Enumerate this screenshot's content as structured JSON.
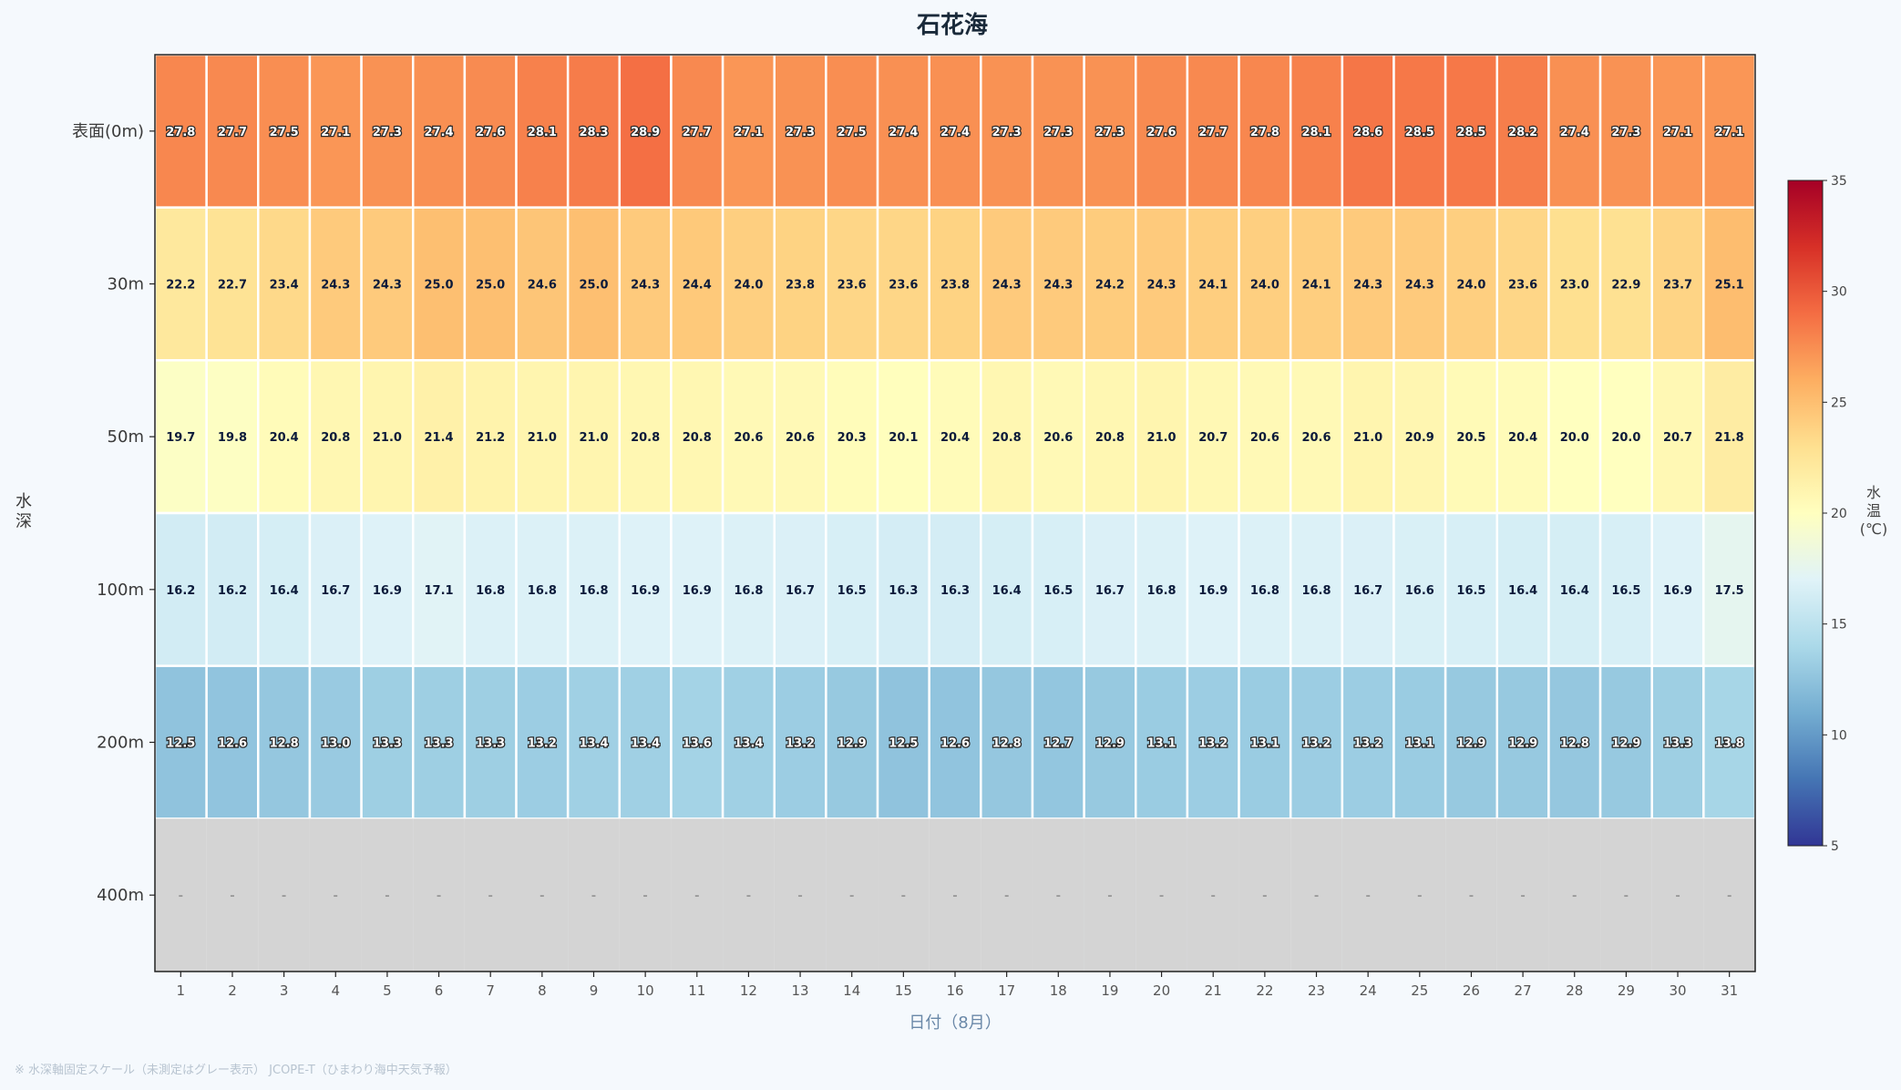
{
  "chart_data": {
    "type": "heatmap",
    "title": "石花海",
    "xlabel": "日付（8月）",
    "ylabel": "水深",
    "x": [
      1,
      2,
      3,
      4,
      5,
      6,
      7,
      8,
      9,
      10,
      11,
      12,
      13,
      14,
      15,
      16,
      17,
      18,
      19,
      20,
      21,
      22,
      23,
      24,
      25,
      26,
      27,
      28,
      29,
      30,
      31
    ],
    "y": [
      "表面(0m)",
      "30m",
      "50m",
      "100m",
      "200m",
      "400m"
    ],
    "values": [
      [
        27.8,
        27.7,
        27.5,
        27.1,
        27.3,
        27.4,
        27.6,
        28.1,
        28.3,
        28.9,
        27.7,
        27.1,
        27.3,
        27.5,
        27.4,
        27.4,
        27.3,
        27.3,
        27.3,
        27.6,
        27.7,
        27.8,
        28.1,
        28.6,
        28.5,
        28.5,
        28.2,
        27.4,
        27.3,
        27.1,
        27.1
      ],
      [
        22.2,
        22.7,
        23.4,
        24.3,
        24.3,
        25.0,
        25.0,
        24.6,
        25.0,
        24.3,
        24.4,
        24.0,
        23.8,
        23.6,
        23.6,
        23.8,
        24.3,
        24.3,
        24.2,
        24.3,
        24.1,
        24.0,
        24.1,
        24.3,
        24.3,
        24.0,
        23.6,
        23.0,
        22.9,
        23.7,
        25.1
      ],
      [
        19.7,
        19.8,
        20.4,
        20.8,
        21.0,
        21.4,
        21.2,
        21.0,
        21.0,
        20.8,
        20.8,
        20.6,
        20.6,
        20.3,
        20.1,
        20.4,
        20.8,
        20.6,
        20.8,
        21.0,
        20.7,
        20.6,
        20.6,
        21.0,
        20.9,
        20.5,
        20.4,
        20.0,
        20.0,
        20.7,
        21.8
      ],
      [
        16.2,
        16.2,
        16.4,
        16.7,
        16.9,
        17.1,
        16.8,
        16.8,
        16.8,
        16.9,
        16.9,
        16.8,
        16.7,
        16.5,
        16.3,
        16.3,
        16.4,
        16.5,
        16.7,
        16.8,
        16.9,
        16.8,
        16.8,
        16.7,
        16.6,
        16.5,
        16.4,
        16.4,
        16.5,
        16.9,
        17.5
      ],
      [
        12.5,
        12.6,
        12.8,
        13.0,
        13.3,
        13.3,
        13.3,
        13.2,
        13.4,
        13.4,
        13.6,
        13.4,
        13.2,
        12.9,
        12.5,
        12.6,
        12.8,
        12.7,
        12.9,
        13.1,
        13.2,
        13.1,
        13.2,
        13.2,
        13.1,
        12.9,
        12.9,
        12.8,
        12.9,
        13.3,
        13.8
      ],
      [
        null,
        null,
        null,
        null,
        null,
        null,
        null,
        null,
        null,
        null,
        null,
        null,
        null,
        null,
        null,
        null,
        null,
        null,
        null,
        null,
        null,
        null,
        null,
        null,
        null,
        null,
        null,
        null,
        null,
        null,
        null
      ]
    ],
    "missing_label": "-",
    "missing_color": "#d4d4d4",
    "colormap": "RdYlBu_r",
    "clim": [
      5,
      35
    ],
    "colorbar": {
      "label": "水温(℃)",
      "ticks": [
        5,
        10,
        15,
        20,
        25,
        30,
        35
      ]
    },
    "grid": false
  },
  "footnote": "※ 水深軸固定スケール（未測定はグレー表示） JCOPE-T（ひまわり海中天気予報）"
}
